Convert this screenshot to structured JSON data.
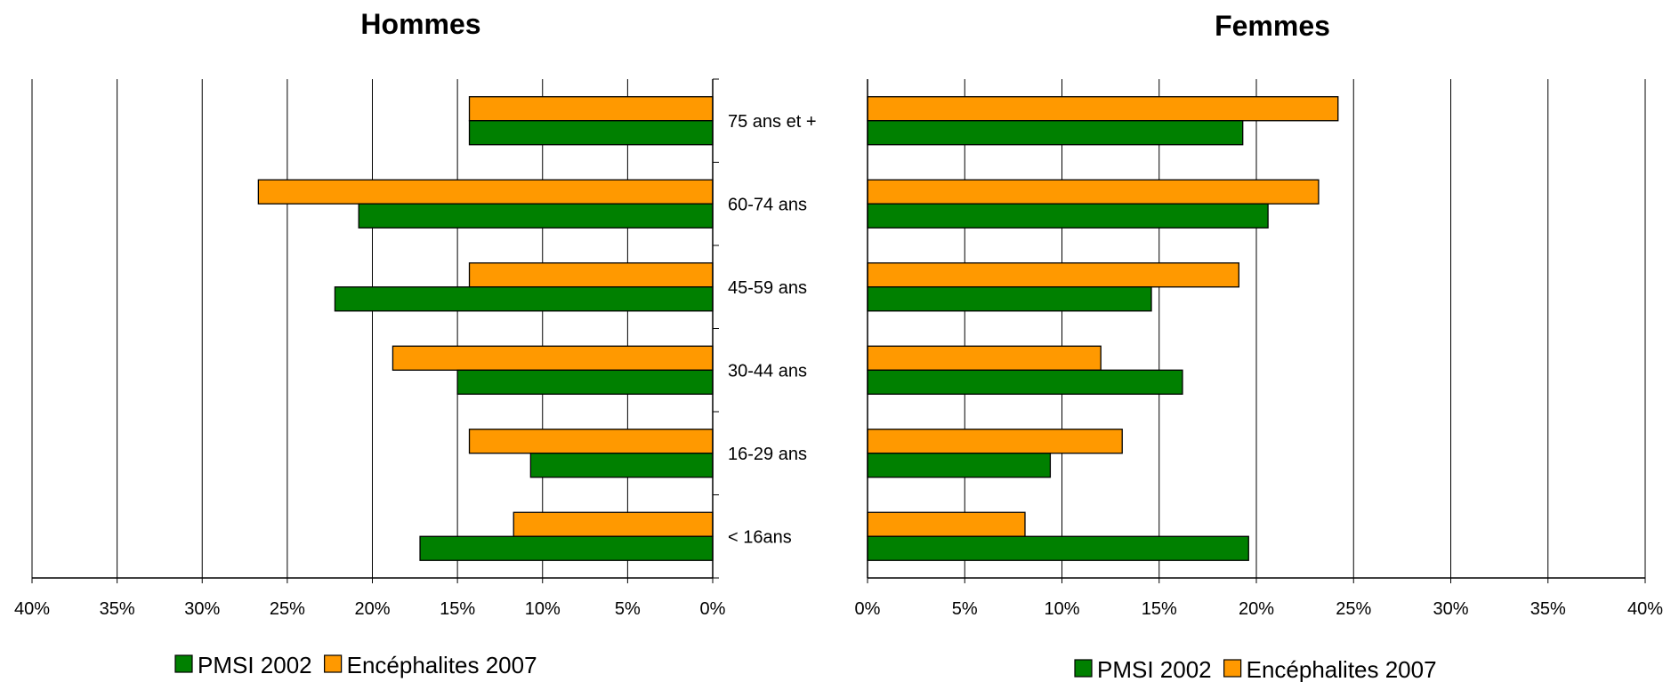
{
  "chart_data": [
    {
      "type": "bar",
      "orientation": "horizontal",
      "direction": "reversed",
      "title": "Hommes",
      "categories": [
        "75 ans et +",
        "60-74 ans",
        "45-59 ans",
        "30-44 ans",
        "16-29 ans",
        "< 16ans"
      ],
      "series": [
        {
          "name": "PMSI 2002",
          "color": "#008000",
          "values": [
            14.3,
            20.8,
            22.2,
            15.0,
            10.7,
            17.2
          ]
        },
        {
          "name": "Encéphalites 2007",
          "color": "#FF9900",
          "values": [
            14.3,
            26.7,
            14.3,
            18.8,
            14.3,
            11.7
          ]
        }
      ],
      "xlim": [
        0,
        40
      ],
      "ticks": [
        "40%",
        "35%",
        "30%",
        "25%",
        "20%",
        "15%",
        "10%",
        "5%",
        "0%"
      ],
      "grid": true
    },
    {
      "type": "bar",
      "orientation": "horizontal",
      "direction": "normal",
      "title": "Femmes",
      "categories": [
        "75 ans et +",
        "60-74 ans",
        "45-59 ans",
        "30-44 ans",
        "16-29 ans",
        "< 16ans"
      ],
      "series": [
        {
          "name": "PMSI 2002",
          "color": "#008000",
          "values": [
            19.3,
            20.6,
            14.6,
            16.2,
            9.4,
            19.6
          ]
        },
        {
          "name": "Encéphalites 2007",
          "color": "#FF9900",
          "values": [
            24.2,
            23.2,
            19.1,
            12.0,
            13.1,
            8.1
          ]
        }
      ],
      "xlim": [
        0,
        40
      ],
      "ticks": [
        "0%",
        "5%",
        "10%",
        "15%",
        "20%",
        "25%",
        "30%",
        "35%",
        "40%"
      ],
      "grid": true
    }
  ],
  "legend": [
    {
      "label": "PMSI 2002",
      "color": "#008000"
    },
    {
      "label": "Encéphalites 2007",
      "color": "#FF9900"
    }
  ]
}
